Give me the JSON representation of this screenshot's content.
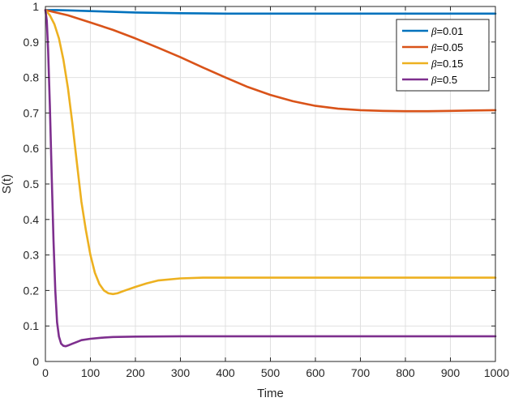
{
  "chart_data": {
    "type": "line",
    "title": "",
    "xlabel": "Time",
    "ylabel": "S(t)",
    "xlim": [
      0,
      1000
    ],
    "ylim": [
      0,
      1
    ],
    "xticks": [
      0,
      100,
      200,
      300,
      400,
      500,
      600,
      700,
      800,
      900,
      1000
    ],
    "yticks": [
      0,
      0.1,
      0.2,
      0.3,
      0.4,
      0.5,
      0.6,
      0.7,
      0.8,
      0.9,
      1
    ],
    "grid": true,
    "legend_position": "top-right",
    "series": [
      {
        "name": "β=0.01",
        "legend_symbol": "β",
        "legend_value": "=0.01",
        "color": "#0072BD",
        "x": [
          0,
          25,
          50,
          100,
          150,
          200,
          300,
          400,
          500,
          600,
          700,
          800,
          900,
          1000
        ],
        "y": [
          0.99,
          0.99,
          0.989,
          0.987,
          0.985,
          0.983,
          0.981,
          0.98,
          0.98,
          0.98,
          0.98,
          0.98,
          0.98,
          0.98
        ]
      },
      {
        "name": "β=0.05",
        "legend_symbol": "β",
        "legend_value": "=0.05",
        "color": "#D95319",
        "x": [
          0,
          50,
          100,
          150,
          200,
          250,
          300,
          350,
          400,
          450,
          500,
          550,
          600,
          650,
          700,
          750,
          800,
          850,
          900,
          950,
          1000
        ],
        "y": [
          0.99,
          0.975,
          0.955,
          0.934,
          0.91,
          0.884,
          0.857,
          0.828,
          0.8,
          0.773,
          0.751,
          0.733,
          0.72,
          0.712,
          0.708,
          0.706,
          0.705,
          0.705,
          0.706,
          0.707,
          0.708
        ]
      },
      {
        "name": "β=0.15",
        "legend_symbol": "β",
        "legend_value": "=0.15",
        "color": "#EDB120",
        "x": [
          0,
          10,
          20,
          30,
          40,
          50,
          60,
          70,
          80,
          90,
          100,
          110,
          120,
          130,
          140,
          150,
          160,
          175,
          200,
          225,
          250,
          300,
          350,
          400,
          500,
          600,
          700,
          800,
          900,
          1000
        ],
        "y": [
          0.99,
          0.975,
          0.95,
          0.91,
          0.85,
          0.77,
          0.67,
          0.56,
          0.45,
          0.37,
          0.3,
          0.25,
          0.218,
          0.2,
          0.192,
          0.19,
          0.192,
          0.199,
          0.21,
          0.22,
          0.228,
          0.234,
          0.236,
          0.236,
          0.236,
          0.236,
          0.236,
          0.236,
          0.236,
          0.236
        ]
      },
      {
        "name": "β=0.5",
        "legend_symbol": "β",
        "legend_value": "=0.5",
        "color": "#7E2F8E",
        "x": [
          0,
          3,
          6,
          10,
          14,
          18,
          22,
          26,
          30,
          35,
          40,
          45,
          50,
          60,
          70,
          80,
          100,
          125,
          150,
          200,
          300,
          400,
          600,
          800,
          1000
        ],
        "y": [
          0.99,
          0.96,
          0.88,
          0.72,
          0.52,
          0.34,
          0.2,
          0.11,
          0.07,
          0.05,
          0.044,
          0.043,
          0.045,
          0.05,
          0.055,
          0.06,
          0.064,
          0.067,
          0.069,
          0.07,
          0.071,
          0.071,
          0.071,
          0.071,
          0.071
        ]
      }
    ]
  }
}
